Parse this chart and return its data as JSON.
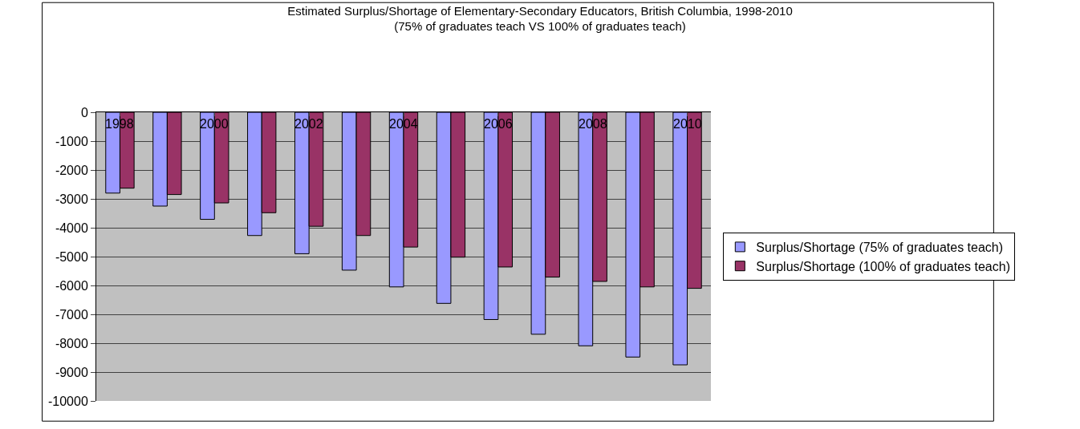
{
  "chart_data": {
    "type": "bar",
    "title": "Estimated Surplus/Shortage of Elementary-Secondary Educators, British Columbia, 1998-2010",
    "subtitle": "(75% of graduates teach VS 100% of graduates teach)",
    "categories": [
      "1998",
      null,
      "2000",
      null,
      "2002",
      null,
      "2004",
      null,
      "2006",
      null,
      "2008",
      null,
      "2010"
    ],
    "series": [
      {
        "name": "Surplus/Shortage (75% of graduates teach)",
        "color": "#9999ff",
        "values": [
          -2800,
          -3250,
          -3710,
          -4270,
          -4900,
          -5470,
          -6050,
          -6620,
          -7180,
          -7690,
          -8090,
          -8480,
          -8750
        ]
      },
      {
        "name": "Surplus/Shortage (100% of graduates teach)",
        "color": "#993366",
        "values": [
          -2630,
          -2850,
          -3140,
          -3480,
          -3950,
          -4270,
          -4670,
          -5020,
          -5360,
          -5710,
          -5860,
          -6050,
          -6100
        ]
      }
    ],
    "ylim": [
      -10000,
      0
    ],
    "yticks": [
      0,
      -1000,
      -2000,
      -3000,
      -4000,
      -5000,
      -6000,
      -7000,
      -8000,
      -9000,
      -10000
    ],
    "grid": "y",
    "legend": "right"
  }
}
